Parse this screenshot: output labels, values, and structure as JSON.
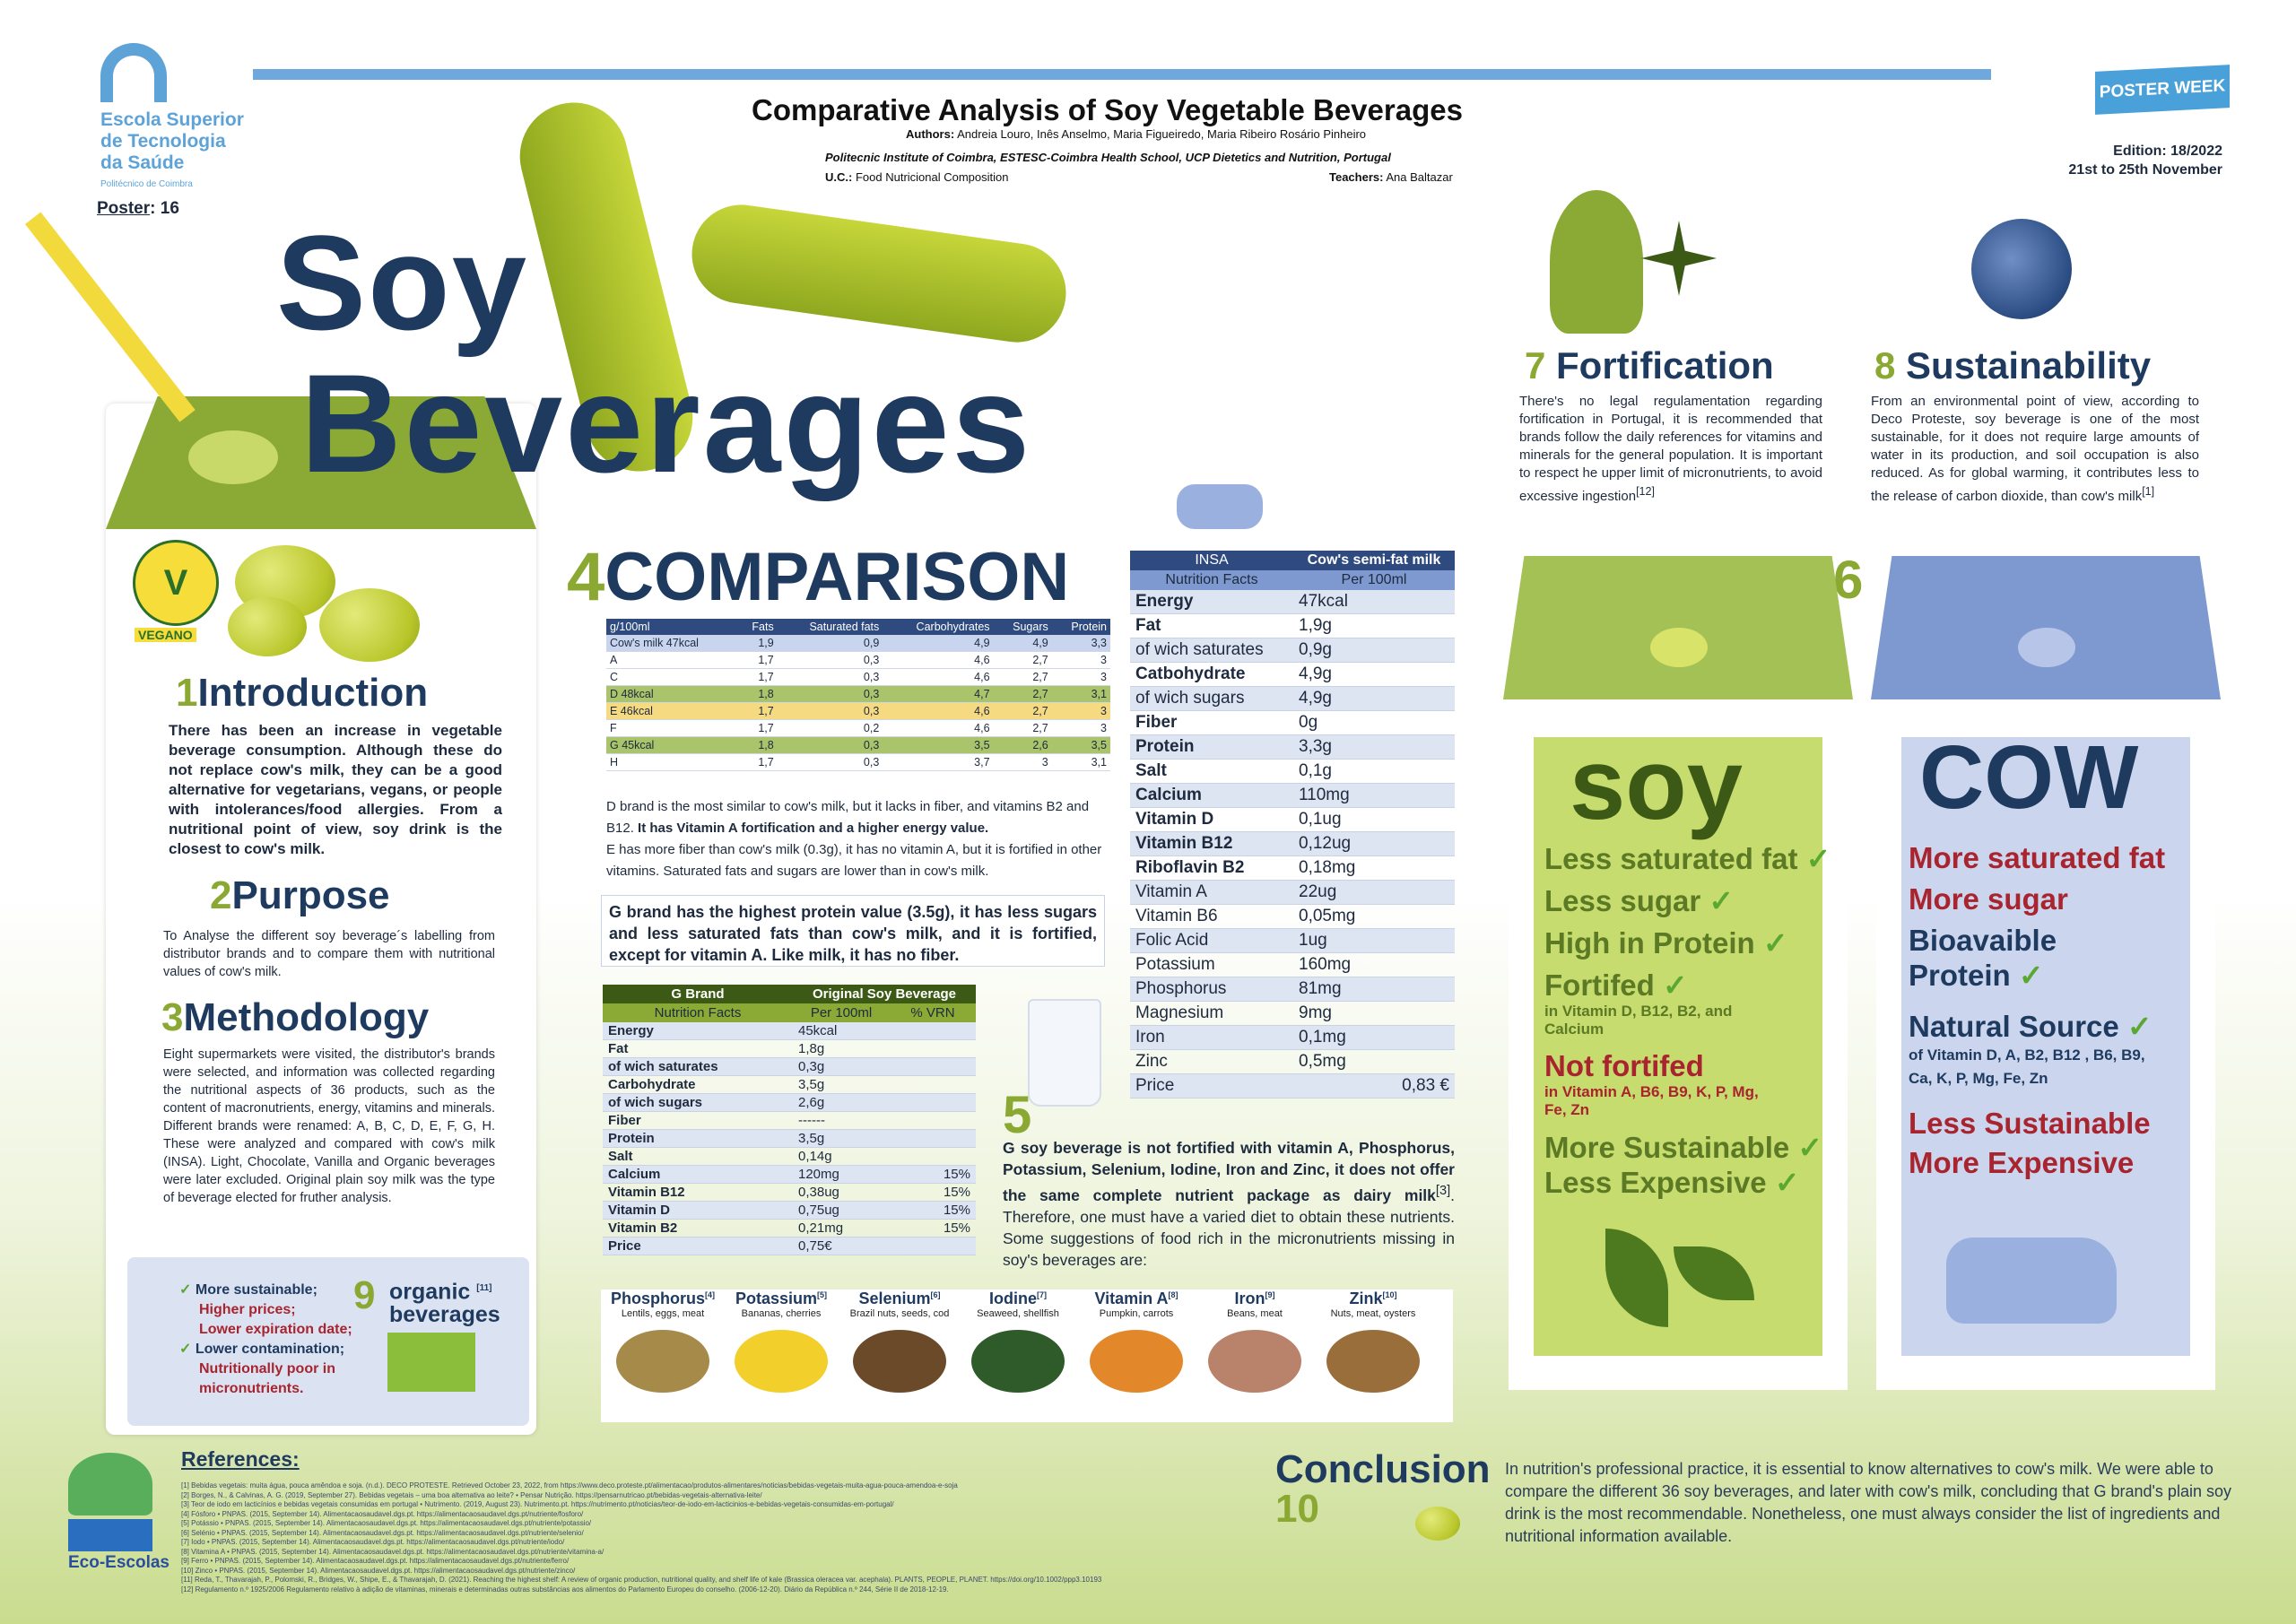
{
  "header": {
    "school": [
      "Escola Superior",
      "de Tecnologia",
      "da Saúde"
    ],
    "school_sub": "Politécnico de Coimbra",
    "poster_label": "Poster",
    "poster_no": ": 16",
    "title": "Comparative Analysis of Soy Vegetable Beverages",
    "authors_label": "Authors:",
    "authors": "Andreia Louro, Inês Anselmo, Maria Figueiredo, Maria Ribeiro Rosário Pinheiro",
    "institution": "Politecnic Institute of Coimbra, ESTESC-Coimbra Health School, UCP Dietetics and Nutrition, Portugal",
    "uc_label": "U.C.:",
    "uc": "Food Nutricional Composition",
    "teachers_label": "Teachers:",
    "teachers": "Ana Baltazar",
    "badge": "POSTER WEEK",
    "edition": "Edition: 18/2022",
    "dates": "21st to 25th November"
  },
  "hero": {
    "line1": "Soy",
    "line2": "Beverages"
  },
  "vegan_label": "VEGANO",
  "intro": {
    "num": "1",
    "title": "Introduction",
    "text": "There has been an increase in vegetable beverage consumption. Although these do not replace cow's milk, they can be a good alternative for vegetarians, vegans, or people with intolerances/food allergies. From a nutritional point of view, soy drink is the closest to cow's milk."
  },
  "purpose": {
    "num": "2",
    "title": "Purpose",
    "text": "To Analyse the different soy beverage´s labelling from distributor brands and to compare them with nutritional values of cow's milk."
  },
  "methodology": {
    "num": "3",
    "title": "Methodology",
    "text": "Eight supermarkets were visited, the distributor's brands were selected, and information was collected regarding the nutritional aspects of 36 products, such as the content of macronutrients, energy, vitamins and minerals. Different brands were renamed: A, B, C, D, E, F, G, H. These were analyzed and compared with cow's milk (INSA). Light, Chocolate, Vanilla and Organic beverages were later excluded. Original plain soy milk was the type of beverage elected for fruther analysis."
  },
  "organic": {
    "num": "9",
    "title": "organic",
    "ref": "[11]",
    "title2": "beverages",
    "items": [
      {
        "text": "More sustainable;",
        "tone": "navy",
        "tick": true
      },
      {
        "text": "Higher prices;",
        "tone": "red",
        "tick": false
      },
      {
        "text": "Lower expiration date;",
        "tone": "red",
        "tick": false
      },
      {
        "text": "Lower contamination;",
        "tone": "navy",
        "tick": true
      },
      {
        "text": "Nutritionally poor in",
        "tone": "red",
        "tick": false
      },
      {
        "text": "micronutrients.",
        "tone": "red",
        "tick": false
      }
    ]
  },
  "comparison": {
    "num": "4",
    "title": "COMPARISON",
    "table_headers": [
      "g/100ml",
      "Fats",
      "Saturated fats",
      "Carbohydrates",
      "Sugars",
      "Protein"
    ],
    "table_rows": [
      [
        "Cow's milk 47kcal",
        "1,9",
        "0,9",
        "4,9",
        "4,9",
        "3,3"
      ],
      [
        "A",
        "1,7",
        "0,3",
        "4,6",
        "2,7",
        "3"
      ],
      [
        "C",
        "1,7",
        "0,3",
        "4,6",
        "2,7",
        "3"
      ],
      [
        "D 48kcal",
        "1,8",
        "0,3",
        "4,7",
        "2,7",
        "3,1"
      ],
      [
        "E 46kcal",
        "1,7",
        "0,3",
        "4,6",
        "2,7",
        "3"
      ],
      [
        "F",
        "1,7",
        "0,2",
        "4,6",
        "2,7",
        "3"
      ],
      [
        "G 45kcal",
        "1,8",
        "0,3",
        "3,5",
        "2,6",
        "3,5"
      ],
      [
        "H",
        "1,7",
        "0,3",
        "3,7",
        "3",
        "3,1"
      ]
    ],
    "note_d": "D brand is the most similar to cow's milk, but it lacks in fiber, and vitamins B2 and B12.",
    "note_d_bold": "It has Vitamin A fortification and a higher energy value.",
    "note_e": "E has more fiber than cow's milk (0.3g), it has no vitamin A, but it is fortified in other vitamins. Saturated fats and sugars are lower than in cow's milk.",
    "g_box": "G brand has the highest protein value (3.5g), it has less sugars and less saturated fats than cow's milk, and it is fortified, except for vitamin A. Like milk, it has no fiber."
  },
  "g_table": {
    "h1": [
      "G Brand",
      "Original Soy Beverage"
    ],
    "h2": [
      "Nutrition Facts",
      "Per 100ml",
      "% VRN"
    ],
    "rows": [
      [
        "Energy",
        "45kcal",
        ""
      ],
      [
        "Fat",
        "1,8g",
        ""
      ],
      [
        "of wich saturates",
        "0,3g",
        ""
      ],
      [
        "Carbohydrate",
        "3,5g",
        ""
      ],
      [
        "of wich sugars",
        "2,6g",
        ""
      ],
      [
        "Fiber",
        "------",
        ""
      ],
      [
        "Protein",
        "3,5g",
        ""
      ],
      [
        "Salt",
        "0,14g",
        ""
      ],
      [
        "Calcium",
        "120mg",
        "15%"
      ],
      [
        "Vitamin B12",
        "0,38ug",
        "15%"
      ],
      [
        "Vitamin D",
        "0,75ug",
        "15%"
      ],
      [
        "Vitamin B2",
        "0,21mg",
        "15%"
      ],
      [
        "Price",
        "0,75€",
        ""
      ]
    ]
  },
  "insa_table": {
    "h1": [
      "INSA",
      "Cow's semi-fat milk"
    ],
    "h2": [
      "Nutrition Facts",
      "Per 100ml"
    ],
    "rows": [
      [
        "Energy",
        "47kcal",
        true
      ],
      [
        "Fat",
        "1,9g",
        true
      ],
      [
        "of wich saturates",
        "0,9g",
        false
      ],
      [
        "Catbohydrate",
        "4,9g",
        true
      ],
      [
        "of wich sugars",
        "4,9g",
        false
      ],
      [
        "Fiber",
        "0g",
        true
      ],
      [
        "Protein",
        "3,3g",
        true
      ],
      [
        "Salt",
        "0,1g",
        true
      ],
      [
        "Calcium",
        "110mg",
        true
      ],
      [
        "Vitamin D",
        "0,1ug",
        true
      ],
      [
        "Vitamin B12",
        "0,12ug",
        true
      ],
      [
        "Riboflavin B2",
        "0,18mg",
        true
      ],
      [
        "Vitamin A",
        "22ug",
        false
      ],
      [
        "Vitamin B6",
        "0,05mg",
        false
      ],
      [
        "Folic Acid",
        "1ug",
        false
      ],
      [
        "Potassium",
        "160mg",
        false
      ],
      [
        "Phosphorus",
        "81mg",
        false
      ],
      [
        "Magnesium",
        "9mg",
        false
      ],
      [
        "Iron",
        "0,1mg",
        false
      ],
      [
        "Zinc",
        "0,5mg",
        false
      ],
      [
        "Price",
        "0,83 €",
        false
      ]
    ]
  },
  "section5": {
    "num": "5",
    "text_a": "G soy beverage is not fortified with ",
    "text_b": "vitamin A, Phosphorus, Potassium, Selenium, Iodine, Iron and Zinc, it does not offer the same complete nutrient package as dairy milk",
    "text_ref": "[3]",
    "text_c": ". Therefore, one must have a varied diet to obtain these nutrients. Some suggestions of food rich in the micronutrients missing in soy's beverages are:"
  },
  "foods": [
    {
      "name": "Phosphorus",
      "ref": "[4]",
      "sub": "Lentils, eggs, meat",
      "color": "#a58a4a"
    },
    {
      "name": "Potassium",
      "ref": "[5]",
      "sub": "Bananas, cherries",
      "color": "#f2cf2a"
    },
    {
      "name": "Selenium",
      "ref": "[6]",
      "sub": "Brazil nuts, seeds, cod",
      "color": "#6b4a2a"
    },
    {
      "name": "Iodine",
      "ref": "[7]",
      "sub": "Seaweed, shellfish",
      "color": "#2f5a2a"
    },
    {
      "name": "Vitamin A",
      "ref": "[8]",
      "sub": "Pumpkin, carrots",
      "color": "#e2882a"
    },
    {
      "name": "Iron",
      "ref": "[9]",
      "sub": "Beans, meat",
      "color": "#b9826a"
    },
    {
      "name": "Zink",
      "ref": "[10]",
      "sub": "Nuts, meat, oysters",
      "color": "#9a6e3a"
    }
  ],
  "section6": {
    "num": "6"
  },
  "soy_card": {
    "word": "soy",
    "lines": [
      {
        "text": "Less saturated fat",
        "tick": "✓",
        "tone": "green",
        "sub": ""
      },
      {
        "text": "Less sugar",
        "tick": "✓",
        "tone": "green",
        "sub": ""
      },
      {
        "text": "High in Protein",
        "tick": "✓",
        "tone": "green",
        "sub": ""
      },
      {
        "text": "Fortifed",
        "tick": "✓",
        "tone": "green",
        "sub": "in Vitamin D, B12, B2, and Calcium"
      },
      {
        "text": "Not fortifed",
        "tick": "",
        "tone": "red",
        "sub": "in Vitamin A, B6, B9, K, P, Mg, Fe, Zn"
      },
      {
        "text": "More Sustainable",
        "tick": "✓",
        "tone": "green",
        "sub": ""
      },
      {
        "text": "Less Expensive",
        "tick": "✓",
        "tone": "green",
        "sub": ""
      }
    ]
  },
  "cow_card": {
    "word": "COW",
    "lines": [
      {
        "text": "More saturated fat",
        "tone": "red",
        "tick": "",
        "sub": ""
      },
      {
        "text": "More sugar",
        "tone": "red",
        "tick": "",
        "sub": ""
      },
      {
        "text": "Bioavaible Protein",
        "tone": "navy",
        "tick": "✓",
        "sub": ""
      },
      {
        "text": "Natural Source",
        "tone": "navy",
        "tick": "✓",
        "sub": "of Vitamin D, A, B2, B12 , B6, B9, Ca, K, P, Mg, Fe, Zn"
      },
      {
        "text": "Less Sustainable",
        "tone": "red",
        "tick": "",
        "sub": ""
      },
      {
        "text": "More Expensive",
        "tone": "red",
        "tick": "",
        "sub": ""
      }
    ]
  },
  "fortification": {
    "num": "7",
    "title": "Fortification",
    "text": "There's no legal regulamentation regarding fortification in Portugal, it is recommended that brands follow the daily references for vitamins and minerals for the general population. It is important to respect he upper limit of micronutrients, to avoid excessive ingestion",
    "ref": "[12]"
  },
  "sustainability": {
    "num": "8",
    "title": "Sustainability",
    "text": "From an environmental point of view, according to Deco Proteste, soy beverage is one of the most sustainable, for it does not require large amounts of water in its production, and soil occupation is also reduced. As for global warming, it contributes less to the release of carbon dioxide, than cow's milk",
    "ref": "[1]"
  },
  "references": {
    "title": "References:",
    "items": [
      "[1] Bebidas vegetais: muita água, pouca amêndoa e soja. (n.d.). DECO PROTESTE. Retrieved October 23, 2022, from https://www.deco.proteste.pt/alimentacao/produtos-alimentares/noticias/bebidas-vegetais-muita-agua-pouca-amendoa-e-soja",
      "[2] Borges, N., & Calvinas, A. G. (2019, September 27). Bebidas vegetais – uma boa alternativa ao leite? • Pensar Nutrição. https://pensarnutricao.pt/bebidas-vegetais-alternativa-leite/",
      "[3] Teor de iodo em lacticínios e bebidas vegetais consumidas em portugal • Nutrimento. (2019, August 23). Nutrimento.pt. https://nutrimento.pt/noticias/teor-de-iodo-em-lacticinios-e-bebidas-vegetais-consumidas-em-portugal/",
      "[4] Fósforo • PNPAS. (2015, September 14). Alimentacaosaudavel.dgs.pt. https://alimentacaosaudavel.dgs.pt/nutriente/fosforo/",
      "[5] Potássio • PNPAS. (2015, September 14). Alimentacaosaudavel.dgs.pt. https://alimentacaosaudavel.dgs.pt/nutriente/potassio/",
      "[6] Selénio • PNPAS. (2015, September 14). Alimentacaosaudavel.dgs.pt. https://alimentacaosaudavel.dgs.pt/nutriente/selenio/",
      "[7] Iodo • PNPAS. (2015, September 14). Alimentacaosaudavel.dgs.pt. https://alimentacaosaudavel.dgs.pt/nutriente/iodo/",
      "[8] Vitamina A • PNPAS. (2015, September 14). Alimentacaosaudavel.dgs.pt. https://alimentacaosaudavel.dgs.pt/nutriente/vitamina-a/",
      "[9] Ferro • PNPAS. (2015, September 14). Alimentacaosaudavel.dgs.pt. https://alimentacaosaudavel.dgs.pt/nutriente/ferro/",
      "[10] Zinco • PNPAS. (2015, September 14). Alimentacaosaudavel.dgs.pt. https://alimentacaosaudavel.dgs.pt/nutriente/zinco/",
      "[11] Reda, T., Thavarajah, P., Polomski, R., Bridges, W., Shipe, E., & Thavarajah, D. (2021). Reaching the highest shelf: A review of organic production, nutritional quality, and shelf life of kale (Brassica oleracea var. acephala). PLANTS, PEOPLE, PLANET. https://doi.org/10.1002/ppp3.10193",
      "[12] Regulamento n.º 1925/2006 Regulamento relativo à adição de vitaminas, minerais e determinadas outras substâncias aos alimentos do Parlamento Europeu do conselho. (2006-12-20). Diário da República n.º 244, Série II de 2018-12-19."
    ]
  },
  "conclusion": {
    "title": "Conclusion",
    "num": "10",
    "text": "In nutrition's professional practice, it is essential to know alternatives to cow's milk. We were able to compare the different 36 soy beverages, and later with cow's milk, concluding that G brand's plain soy drink is the most recommendable. Nonetheless, one must always consider the list of ingredients and nutritional information available."
  },
  "eco": {
    "label": "Eco-Escolas"
  },
  "colors": {
    "navy": "#1f3a5f",
    "green": "#8aa832",
    "red": "#a8242e",
    "sky": "#6ea8dc"
  }
}
